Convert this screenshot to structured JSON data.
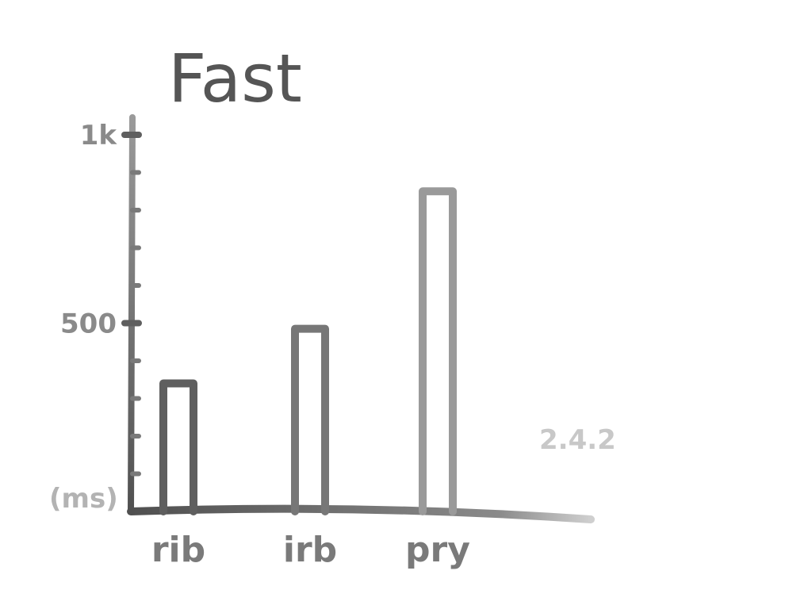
{
  "chart_data": {
    "type": "bar",
    "title": "Fast",
    "ylabel": "(ms)",
    "annotation": "2.4.2",
    "categories": [
      "rib",
      "irb",
      "pry"
    ],
    "values": [
      340,
      485,
      850
    ],
    "ylim": [
      0,
      1000
    ],
    "yticks": [
      {
        "value": 1000,
        "label": "1k"
      },
      {
        "value": 500,
        "label": "500"
      }
    ],
    "minor_tick_step": 100,
    "grid": false,
    "bar_style": "outline",
    "colors": {
      "axis": "#6a6a6a",
      "bar_rib": "#5f5f5f",
      "bar_irb": "#777777",
      "bar_pry": "#9a9a9a"
    }
  }
}
